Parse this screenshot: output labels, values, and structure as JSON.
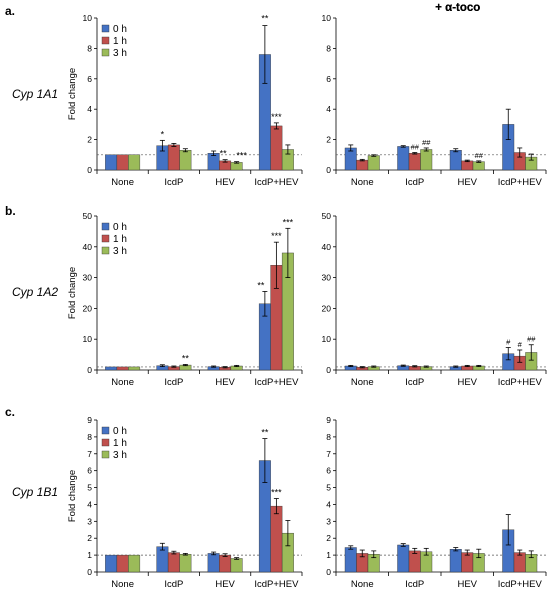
{
  "colors": {
    "series": [
      "#4472c4",
      "#c0504d",
      "#9bbb59"
    ]
  },
  "chart_data": [
    {
      "type": "bar",
      "row_label": "a.",
      "gene_label": "Cyp 1A1",
      "title": "",
      "ylabel": "Fold change",
      "ylim": [
        0,
        10
      ],
      "yticks": [
        0,
        2,
        4,
        6,
        8,
        10
      ],
      "categories": [
        "None",
        "IcdP",
        "HEV",
        "IcdP+HEV"
      ],
      "legend": [
        "0 h",
        "1 h",
        "3 h"
      ],
      "series": [
        {
          "name": "0 h",
          "values": [
            1,
            1.6,
            1.1,
            7.6
          ],
          "errors": [
            0,
            0.35,
            0.15,
            1.9
          ]
        },
        {
          "name": "1 h",
          "values": [
            1,
            1.65,
            0.6,
            2.9
          ],
          "errors": [
            0,
            0.1,
            0.08,
            0.2
          ]
        },
        {
          "name": "3 h",
          "values": [
            1,
            1.3,
            0.5,
            1.35
          ],
          "errors": [
            0,
            0.1,
            0.05,
            0.3
          ]
        }
      ],
      "annotations": [
        [
          "",
          "*",
          "",
          ""
        ],
        [
          "",
          "",
          "**",
          "***"
        ],
        [
          "",
          "",
          "***",
          ""
        ]
      ],
      "annotations_rev": [
        [
          "",
          "",
          "",
          "**"
        ],
        [
          "",
          "",
          "",
          ""
        ],
        [
          "",
          "",
          "",
          ""
        ]
      ]
    },
    {
      "type": "bar",
      "title": "+ α-toco",
      "ylim": [
        0,
        10
      ],
      "yticks": [
        0,
        2,
        4,
        6,
        8,
        10
      ],
      "categories": [
        "None",
        "IcdP",
        "HEV",
        "IcdP+HEV"
      ],
      "series": [
        {
          "name": "0 h",
          "values": [
            1.45,
            1.55,
            1.3,
            3.0
          ],
          "errors": [
            0.2,
            0.05,
            0.1,
            1.0
          ]
        },
        {
          "name": "1 h",
          "values": [
            0.65,
            1.1,
            0.6,
            1.15
          ],
          "errors": [
            0.05,
            0.05,
            0.05,
            0.3
          ]
        },
        {
          "name": "3 h",
          "values": [
            0.95,
            1.35,
            0.55,
            0.85
          ],
          "errors": [
            0.05,
            0.1,
            0.05,
            0.2
          ]
        }
      ],
      "annotations": [
        [
          "",
          "",
          "",
          ""
        ],
        [
          "",
          "##",
          "",
          ""
        ],
        [
          "",
          "##",
          "##",
          ""
        ]
      ]
    },
    {
      "type": "bar",
      "row_label": "b.",
      "gene_label": "Cyp 1A2",
      "title": "",
      "ylabel": "Fold change",
      "ylim": [
        0,
        50
      ],
      "yticks": [
        0,
        10,
        20,
        30,
        40,
        50
      ],
      "categories": [
        "None",
        "IcdP",
        "HEV",
        "IcdP+HEV"
      ],
      "legend": [
        "0 h",
        "1 h",
        "3 h"
      ],
      "series": [
        {
          "name": "0 h",
          "values": [
            1,
            1.4,
            1.1,
            21.5
          ],
          "errors": [
            0,
            0.3,
            0.2,
            4.0
          ]
        },
        {
          "name": "1 h",
          "values": [
            1,
            1.1,
            0.9,
            34.0
          ],
          "errors": [
            0,
            0.2,
            0.2,
            7.5
          ]
        },
        {
          "name": "3 h",
          "values": [
            1,
            1.6,
            1.3,
            38.0
          ],
          "errors": [
            0,
            0.2,
            0.2,
            8.0
          ]
        }
      ],
      "annotations": [
        [
          "",
          "",
          "",
          "**"
        ],
        [
          "",
          "",
          "",
          "***"
        ],
        [
          "",
          "**",
          "",
          "***"
        ]
      ]
    },
    {
      "type": "bar",
      "title": "+ α-toco",
      "ylim": [
        0,
        50
      ],
      "yticks": [
        0,
        10,
        20,
        30,
        40,
        50
      ],
      "categories": [
        "None",
        "IcdP",
        "HEV",
        "IcdP+HEV"
      ],
      "series": [
        {
          "name": "0 h",
          "values": [
            1.3,
            1.4,
            1.1,
            5.3
          ],
          "errors": [
            0.2,
            0.2,
            0.2,
            2.0
          ]
        },
        {
          "name": "1 h",
          "values": [
            0.9,
            1.2,
            1.3,
            4.5
          ],
          "errors": [
            0.2,
            0.2,
            0.2,
            2.0
          ]
        },
        {
          "name": "3 h",
          "values": [
            1.1,
            1.1,
            1.3,
            5.7
          ],
          "errors": [
            0.2,
            0.2,
            0.2,
            2.5
          ]
        }
      ],
      "annotations": [
        [
          "",
          "",
          "",
          "#"
        ],
        [
          "",
          "",
          "",
          "#"
        ],
        [
          "",
          "",
          "",
          "##"
        ]
      ]
    },
    {
      "type": "bar",
      "row_label": "c.",
      "gene_label": "Cyp 1B1",
      "title": "",
      "ylabel": "Fold change",
      "ylim": [
        0,
        9
      ],
      "yticks": [
        0,
        1,
        2,
        3,
        4,
        5,
        6,
        7,
        8,
        9
      ],
      "categories": [
        "None",
        "IcdP",
        "HEV",
        "IcdP+HEV"
      ],
      "legend": [
        "0 h",
        "1 h",
        "3 h"
      ],
      "series": [
        {
          "name": "0 h",
          "values": [
            1,
            1.5,
            1.1,
            6.6
          ],
          "errors": [
            0,
            0.2,
            0.08,
            1.3
          ]
        },
        {
          "name": "1 h",
          "values": [
            1,
            1.15,
            1.0,
            3.9
          ],
          "errors": [
            0,
            0.08,
            0.08,
            0.45
          ]
        },
        {
          "name": "3 h",
          "values": [
            1,
            1.05,
            0.8,
            2.3
          ],
          "errors": [
            0,
            0.05,
            0.05,
            0.75
          ]
        }
      ],
      "annotations": [
        [
          "",
          "",
          "",
          "**"
        ],
        [
          "",
          "",
          "",
          "***"
        ],
        [
          "",
          "",
          "",
          ""
        ]
      ]
    },
    {
      "type": "bar",
      "title": "+ α-toco",
      "ylim": [
        0,
        9
      ],
      "yticks": [
        0,
        1,
        2,
        3,
        4,
        5,
        6,
        7,
        8,
        9
      ],
      "categories": [
        "None",
        "IcdP",
        "HEV",
        "IcdP+HEV"
      ],
      "series": [
        {
          "name": "0 h",
          "values": [
            1.45,
            1.6,
            1.35,
            2.5
          ],
          "errors": [
            0.1,
            0.08,
            0.1,
            0.9
          ]
        },
        {
          "name": "1 h",
          "values": [
            1.1,
            1.25,
            1.15,
            1.15
          ],
          "errors": [
            0.2,
            0.15,
            0.15,
            0.15
          ]
        },
        {
          "name": "3 h",
          "values": [
            1.05,
            1.2,
            1.1,
            1.05
          ],
          "errors": [
            0.2,
            0.2,
            0.25,
            0.2
          ]
        }
      ],
      "annotations": [
        [
          "",
          "",
          "",
          ""
        ],
        [
          "",
          "",
          "",
          ""
        ],
        [
          "",
          "",
          "",
          ""
        ]
      ]
    }
  ]
}
